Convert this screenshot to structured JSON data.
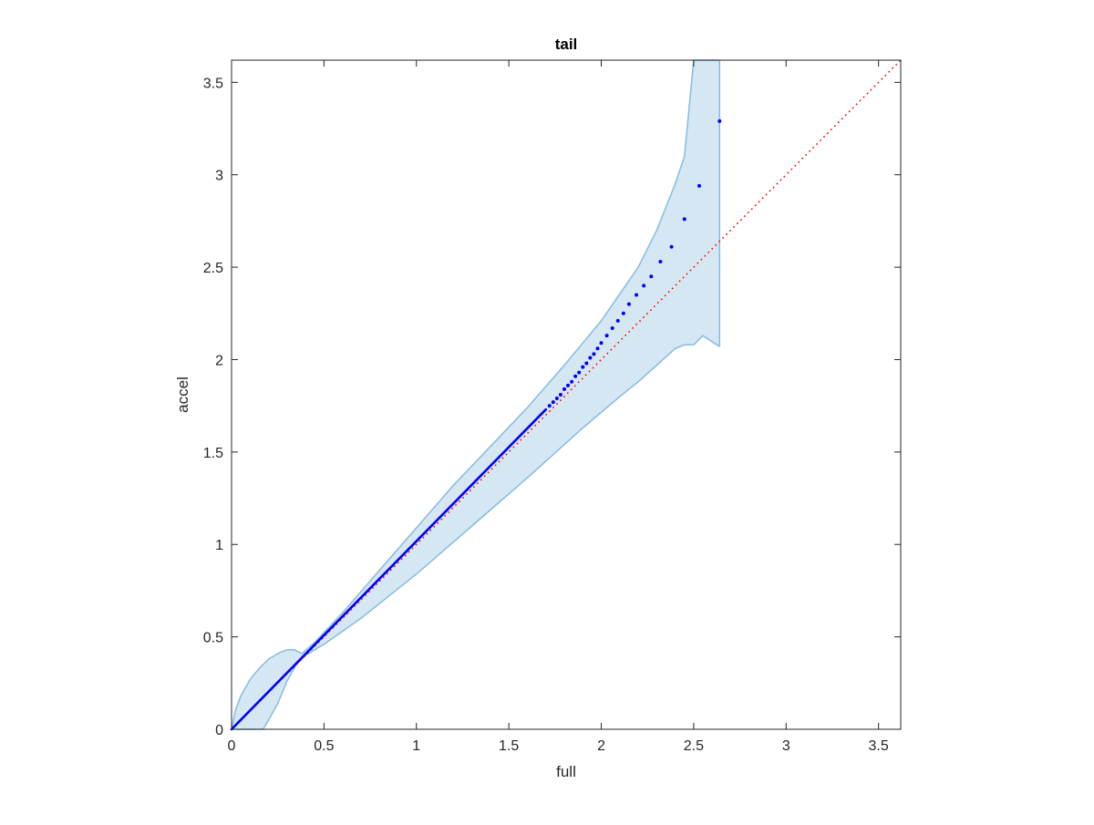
{
  "chart_data": {
    "type": "scatter",
    "title": "tail",
    "xlabel": "full",
    "ylabel": "accel",
    "xlim": [
      0,
      3.62
    ],
    "ylim": [
      0,
      3.62
    ],
    "xticks": [
      0,
      0.5,
      1,
      1.5,
      2,
      2.5,
      3,
      3.5
    ],
    "xtick_labels": [
      "0",
      "0.5",
      "1",
      "1.5",
      "2",
      "2.5",
      "3",
      "3.5"
    ],
    "yticks": [
      0,
      0.5,
      1,
      1.5,
      2,
      2.5,
      3,
      3.5
    ],
    "ytick_labels": [
      "0",
      "0.5",
      "1",
      "1.5",
      "2",
      "2.5",
      "3",
      "3.5"
    ],
    "grid": false,
    "box": true,
    "colors": {
      "points": "#0000ff",
      "reference_line": "#ff0000",
      "band_fill": "#d6e7f4",
      "band_edge": "#86bbe0",
      "axes": "#262626"
    },
    "reference_line": {
      "style": "dotted",
      "x": [
        0,
        3.62
      ],
      "y": [
        0,
        3.62
      ]
    },
    "dense_segment": {
      "x": [
        0,
        1.7
      ],
      "y": [
        0,
        1.73
      ],
      "style": "solid"
    },
    "points": {
      "x": [
        1.72,
        1.74,
        1.76,
        1.78,
        1.8,
        1.82,
        1.84,
        1.86,
        1.88,
        1.9,
        1.92,
        1.94,
        1.96,
        1.98,
        2.0,
        2.03,
        2.06,
        2.09,
        2.12,
        2.15,
        2.19,
        2.23,
        2.27,
        2.32,
        2.38,
        2.45,
        2.53,
        2.64
      ],
      "y": [
        1.75,
        1.77,
        1.79,
        1.81,
        1.84,
        1.86,
        1.88,
        1.91,
        1.93,
        1.96,
        1.98,
        2.01,
        2.03,
        2.06,
        2.09,
        2.13,
        2.17,
        2.21,
        2.25,
        2.3,
        2.35,
        2.4,
        2.45,
        2.53,
        2.61,
        2.76,
        2.94,
        3.29
      ]
    },
    "band": {
      "upper": {
        "x": [
          0.0,
          0.02,
          0.05,
          0.1,
          0.15,
          0.2,
          0.25,
          0.3,
          0.34,
          0.38,
          0.45,
          0.6,
          0.8,
          1.0,
          1.2,
          1.4,
          1.6,
          1.8,
          2.0,
          2.2,
          2.3,
          2.4,
          2.45,
          2.5,
          2.64
        ],
        "y": [
          0.0,
          0.1,
          0.18,
          0.27,
          0.33,
          0.38,
          0.41,
          0.43,
          0.43,
          0.41,
          0.47,
          0.63,
          0.86,
          1.09,
          1.32,
          1.53,
          1.74,
          1.97,
          2.21,
          2.5,
          2.7,
          2.95,
          3.1,
          3.62,
          3.62
        ]
      },
      "lower": {
        "x": [
          0.0,
          0.08,
          0.14,
          0.17,
          0.2,
          0.25,
          0.3,
          0.35,
          0.4,
          0.5,
          0.7,
          1.0,
          1.3,
          1.6,
          1.9,
          2.1,
          2.2,
          2.3,
          2.4,
          2.45,
          2.5,
          2.55,
          2.64
        ],
        "y": [
          0.0,
          0.0,
          0.0,
          0.0,
          0.05,
          0.14,
          0.26,
          0.35,
          0.4,
          0.46,
          0.6,
          0.84,
          1.1,
          1.36,
          1.63,
          1.8,
          1.88,
          1.97,
          2.06,
          2.08,
          2.08,
          2.13,
          2.07
        ]
      }
    }
  }
}
